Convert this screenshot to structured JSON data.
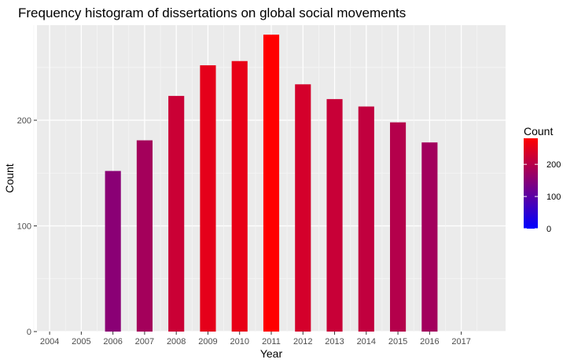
{
  "chart_data": {
    "type": "bar",
    "title": "Frequency histogram of dissertations on global social movements",
    "xlabel": "Year",
    "ylabel": "Count",
    "categories": [
      "2004",
      "2005",
      "2006",
      "2007",
      "2008",
      "2009",
      "2010",
      "2011",
      "2012",
      "2013",
      "2014",
      "2015",
      "2016",
      "2017"
    ],
    "values": [
      0,
      0,
      152,
      181,
      223,
      252,
      256,
      281,
      234,
      220,
      213,
      198,
      179,
      0
    ],
    "ylim": [
      0,
      290
    ],
    "xlim": [
      2003.6,
      2018.4
    ],
    "yticks": [
      0,
      100,
      200
    ],
    "grid": true,
    "legend": {
      "title": "Count",
      "placement": "right",
      "ticks": [
        0,
        100,
        200
      ],
      "range": [
        0,
        281
      ],
      "colors": {
        "low": "#0000ff",
        "high": "#ff0000"
      }
    },
    "colors": {
      "panel": "#ebebeb",
      "grid_major": "#ffffff",
      "grid_minor": "#f5f5f5"
    }
  }
}
